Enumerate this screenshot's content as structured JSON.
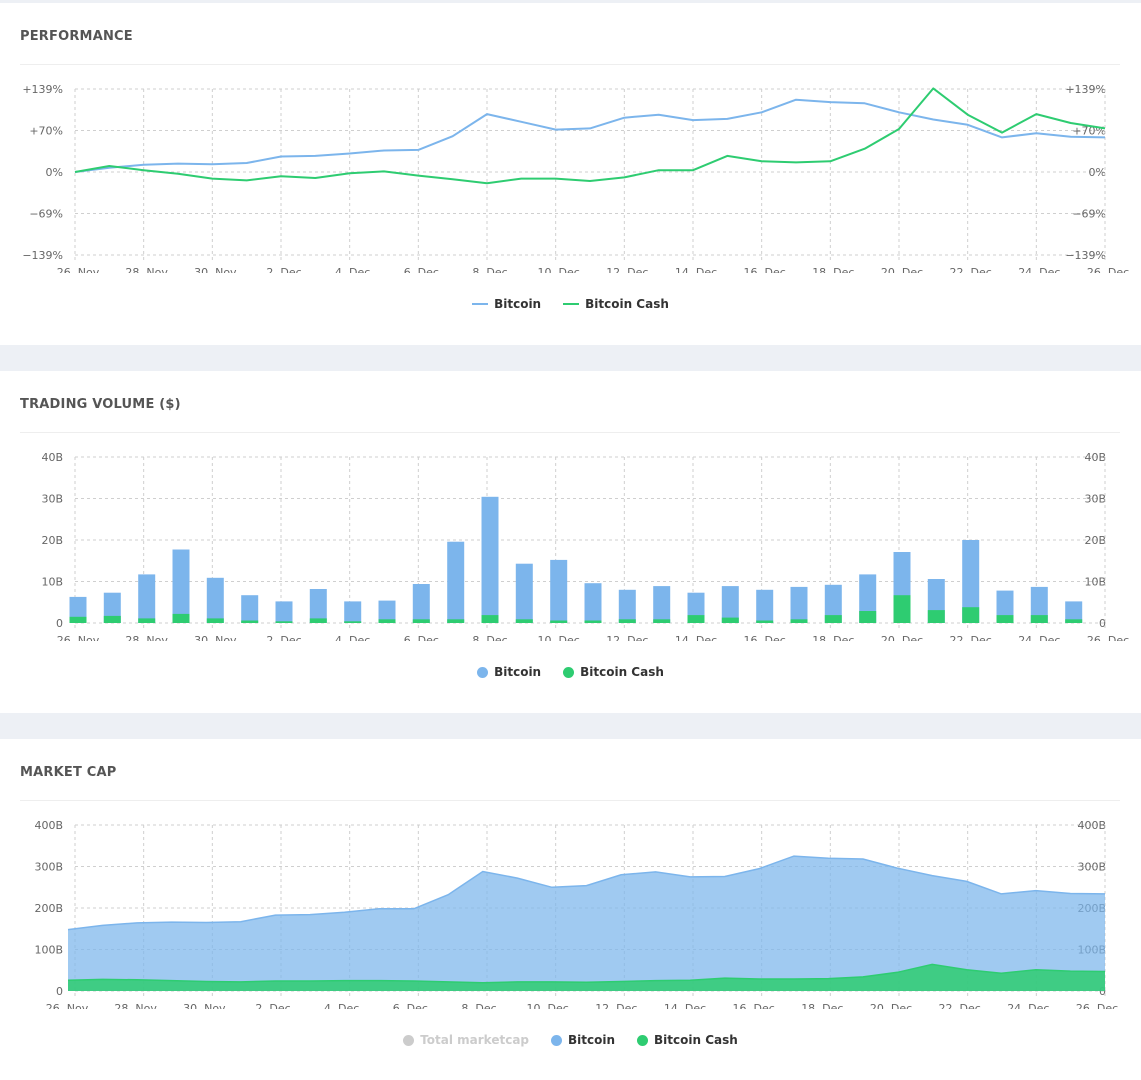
{
  "colors": {
    "bitcoin": "#7cb5ec",
    "bitcoin_cash": "#2ecc71",
    "inactive": "#cccccc"
  },
  "panels": {
    "performance": {
      "title": "PERFORMANCE",
      "legend": [
        {
          "label": "Bitcoin"
        },
        {
          "label": "Bitcoin Cash"
        }
      ]
    },
    "volume": {
      "title": "TRADING VOLUME ($)",
      "legend": [
        {
          "label": "Bitcoin"
        },
        {
          "label": "Bitcoin Cash"
        }
      ]
    },
    "marketcap": {
      "title": "MARKET CAP",
      "legend": [
        {
          "label": "Total marketcap"
        },
        {
          "label": "Bitcoin"
        },
        {
          "label": "Bitcoin Cash"
        }
      ]
    }
  },
  "chart_data": [
    {
      "type": "line",
      "title": "PERFORMANCE",
      "x_tick_labels": [
        "26. Nov",
        "28. Nov",
        "30. Nov",
        "2. Dec",
        "4. Dec",
        "6. Dec",
        "8. Dec",
        "10. Dec",
        "12. Dec",
        "14. Dec",
        "16. Dec",
        "18. Dec",
        "20. Dec",
        "22. Dec",
        "24. Dec",
        "26. Dec"
      ],
      "y_tick_labels": [
        "+139%",
        "+70%",
        "0%",
        "−69%",
        "−139%"
      ],
      "ylim": [
        -139,
        139
      ],
      "grid": true,
      "legend_position": "bottom-center",
      "x": [
        "26. Nov",
        "27. Nov",
        "28. Nov",
        "29. Nov",
        "30. Nov",
        "1. Dec",
        "2. Dec",
        "3. Dec",
        "4. Dec",
        "5. Dec",
        "6. Dec",
        "7. Dec",
        "8. Dec",
        "9. Dec",
        "10. Dec",
        "11. Dec",
        "12. Dec",
        "13. Dec",
        "14. Dec",
        "15. Dec",
        "16. Dec",
        "17. Dec",
        "18. Dec",
        "19. Dec",
        "20. Dec",
        "21. Dec",
        "22. Dec",
        "23. Dec",
        "24. Dec",
        "25. Dec",
        "26. Dec"
      ],
      "series": [
        {
          "name": "Bitcoin",
          "values": [
            0,
            7,
            12,
            14,
            13,
            15,
            26,
            27,
            31,
            36,
            37,
            60,
            97,
            84,
            71,
            73,
            91,
            96,
            87,
            89,
            100,
            121,
            117,
            115,
            100,
            88,
            79,
            58,
            65,
            59,
            58
          ]
        },
        {
          "name": "Bitcoin Cash",
          "values": [
            0,
            10,
            3,
            -3,
            -11,
            -14,
            -7,
            -10,
            -2,
            1,
            -6,
            -12,
            -19,
            -11,
            -11,
            -15,
            -9,
            3,
            3,
            27,
            18,
            16,
            18,
            39,
            72,
            140,
            96,
            66,
            97,
            82,
            73
          ]
        }
      ]
    },
    {
      "type": "bar",
      "title": "TRADING VOLUME ($)",
      "x_tick_labels": [
        "26. Nov",
        "28. Nov",
        "30. Nov",
        "2. Dec",
        "4. Dec",
        "6. Dec",
        "8. Dec",
        "10. Dec",
        "12. Dec",
        "14. Dec",
        "16. Dec",
        "18. Dec",
        "20. Dec",
        "22. Dec",
        "24. Dec",
        "26. Dec"
      ],
      "y_tick_labels": [
        "40B",
        "30B",
        "20B",
        "10B",
        "0"
      ],
      "ylim": [
        0,
        40
      ],
      "grid": true,
      "legend_position": "bottom-center",
      "stacked": false,
      "categories": [
        "26. Nov",
        "27. Nov",
        "28. Nov",
        "29. Nov",
        "30. Nov",
        "1. Dec",
        "2. Dec",
        "3. Dec",
        "4. Dec",
        "5. Dec",
        "6. Dec",
        "7. Dec",
        "8. Dec",
        "9. Dec",
        "10. Dec",
        "11. Dec",
        "12. Dec",
        "13. Dec",
        "14. Dec",
        "15. Dec",
        "16. Dec",
        "17. Dec",
        "18. Dec",
        "19. Dec",
        "20. Dec",
        "21. Dec",
        "22. Dec",
        "23. Dec",
        "24. Dec",
        "25. Dec"
      ],
      "series": [
        {
          "name": "Bitcoin",
          "values": [
            6.3,
            7.3,
            11.7,
            17.7,
            10.9,
            6.7,
            5.2,
            8.2,
            5.2,
            5.4,
            9.4,
            19.6,
            30.4,
            14.3,
            15.2,
            9.6,
            8.0,
            8.9,
            7.3,
            8.9,
            8.0,
            8.7,
            9.2,
            11.7,
            17.1,
            10.6,
            20.0,
            7.8,
            8.7,
            5.2
          ]
        },
        {
          "name": "Bitcoin Cash",
          "values": [
            1.5,
            1.7,
            1.1,
            2.2,
            1.1,
            0.6,
            0.4,
            1.1,
            0.4,
            0.9,
            0.9,
            0.9,
            1.9,
            0.9,
            0.6,
            0.6,
            0.9,
            0.9,
            1.9,
            1.3,
            0.6,
            0.9,
            1.9,
            2.9,
            6.7,
            3.1,
            3.8,
            1.9,
            1.9,
            0.9
          ]
        }
      ]
    },
    {
      "type": "area",
      "title": "MARKET CAP",
      "x_tick_labels": [
        "26. Nov",
        "28. Nov",
        "30. Nov",
        "2. Dec",
        "4. Dec",
        "6. Dec",
        "8. Dec",
        "10. Dec",
        "12. Dec",
        "14. Dec",
        "16. Dec",
        "18. Dec",
        "20. Dec",
        "22. Dec",
        "24. Dec",
        "26. Dec"
      ],
      "y_tick_labels": [
        "400B",
        "300B",
        "200B",
        "100B",
        "0"
      ],
      "ylim": [
        0,
        400
      ],
      "grid": true,
      "legend_position": "bottom-center",
      "x": [
        "26. Nov",
        "27. Nov",
        "28. Nov",
        "29. Nov",
        "30. Nov",
        "1. Dec",
        "2. Dec",
        "3. Dec",
        "4. Dec",
        "5. Dec",
        "6. Dec",
        "7. Dec",
        "8. Dec",
        "9. Dec",
        "10. Dec",
        "11. Dec",
        "12. Dec",
        "13. Dec",
        "14. Dec",
        "15. Dec",
        "16. Dec",
        "17. Dec",
        "18. Dec",
        "19. Dec",
        "20. Dec",
        "21. Dec",
        "22. Dec",
        "23. Dec",
        "24. Dec",
        "25. Dec",
        "26. Dec"
      ],
      "series": [
        {
          "name": "Bitcoin",
          "values": [
            148,
            158,
            164,
            166,
            165,
            167,
            183,
            184,
            190,
            198,
            198,
            232,
            288,
            272,
            250,
            254,
            280,
            287,
            275,
            276,
            295,
            325,
            320,
            318,
            296,
            278,
            264,
            234,
            242,
            235,
            234
          ]
        },
        {
          "name": "Bitcoin Cash",
          "values": [
            26,
            28,
            27,
            25,
            23,
            22,
            24,
            24,
            25,
            25,
            24,
            22,
            20,
            22,
            22,
            21,
            23,
            25,
            26,
            31,
            29,
            29,
            30,
            34,
            45,
            64,
            51,
            43,
            51,
            48,
            47
          ]
        },
        {
          "name": "Total marketcap",
          "visible": false
        }
      ]
    }
  ]
}
